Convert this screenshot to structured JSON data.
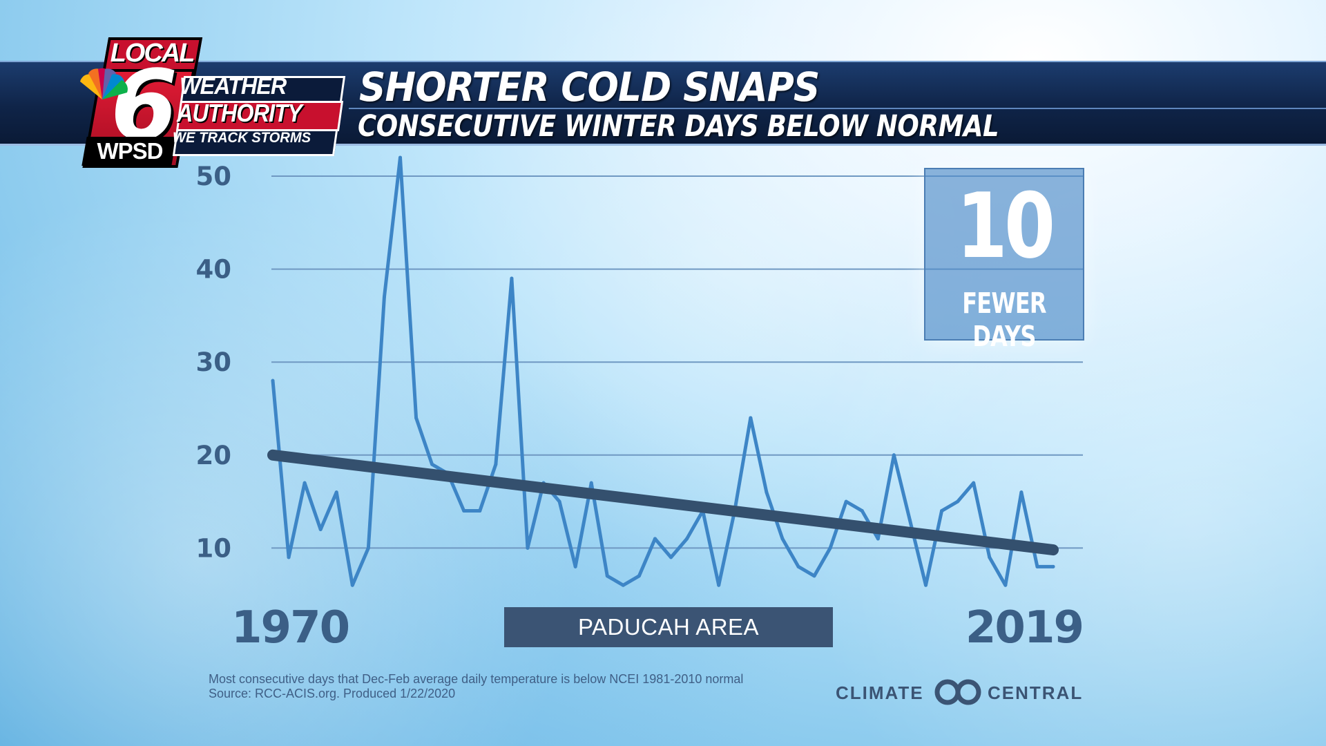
{
  "header": {
    "title": "SHORTER COLD SNAPS",
    "subtitle": "CONSECUTIVE WINTER DAYS BELOW NORMAL"
  },
  "logo": {
    "local": "LOCAL",
    "number": "6",
    "callsign": "WPSD",
    "line1": "WEATHER",
    "line2": "AUTHORITY",
    "line3": "WE TRACK STORMS"
  },
  "callout": {
    "value": "10",
    "label": "FEWER DAYS"
  },
  "area_label": "PADUCAH AREA",
  "footnote": {
    "line1": "Most consecutive days that  Dec-Feb average daily temperature is  below NCEI 1981-2010 normal",
    "line2": "Source: RCC-ACIS.org. Produced 1/22/2020"
  },
  "brand": {
    "left": "CLIMATE",
    "right": "CENTRAL",
    "icon": "climate-central-logo-icon"
  },
  "colors": {
    "banner": "#0f2448",
    "series": "#3d85c6",
    "trend": "#34506e",
    "axis_text": "#3b5f86"
  },
  "chart_data": {
    "type": "line",
    "x_start_label": "1970",
    "x_end_label": "2019",
    "ylim": [
      0,
      52
    ],
    "y_ticks": [
      10,
      20,
      30,
      40,
      50
    ],
    "grid": true,
    "series": [
      {
        "x": [
          1970,
          1971,
          1972,
          1973,
          1974,
          1975,
          1976,
          1977,
          1978,
          1979,
          1980,
          1981,
          1982,
          1983,
          1984,
          1985,
          1986,
          1987,
          1988,
          1989,
          1990,
          1991,
          1992,
          1993,
          1994,
          1995,
          1996,
          1997,
          1998,
          1999,
          2000,
          2001,
          2002,
          2003,
          2004,
          2005,
          2006,
          2007,
          2008,
          2009,
          2010,
          2011,
          2012,
          2013,
          2014,
          2015,
          2016,
          2017,
          2018,
          2019
        ],
        "values": [
          28,
          9,
          17,
          12,
          16,
          6,
          10,
          37,
          52,
          24,
          19,
          18,
          14,
          14,
          19,
          39,
          10,
          17,
          15,
          8,
          17,
          7,
          6,
          7,
          11,
          9,
          11,
          14,
          6,
          14,
          24,
          16,
          11,
          8,
          7,
          10,
          15,
          14,
          11,
          20,
          13,
          6,
          14,
          15,
          17,
          9,
          6,
          16,
          8,
          8
        ]
      },
      {
        "x": [
          1970,
          2019
        ],
        "values": [
          20,
          9.8
        ]
      }
    ]
  }
}
